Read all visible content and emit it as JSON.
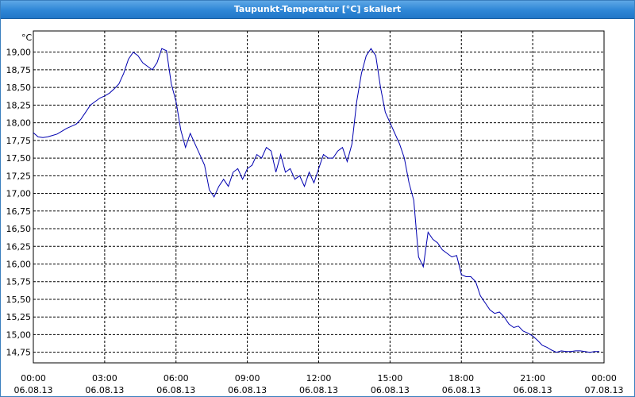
{
  "window": {
    "title": "Taupunkt-Temperatur [°C] skaliert"
  },
  "colors": {
    "line": "#0000b0",
    "grid": "#000000",
    "titlebar": "#2e86d6"
  },
  "chart_data": {
    "type": "line",
    "ylabel": "°C",
    "ylim": [
      14.6,
      19.3
    ],
    "y_ticks": [
      19.0,
      18.75,
      18.5,
      18.25,
      18.0,
      17.75,
      17.5,
      17.25,
      17.0,
      16.75,
      16.5,
      16.25,
      16.0,
      15.75,
      15.5,
      15.25,
      15.0,
      14.75
    ],
    "y_tick_labels": [
      "19,00",
      "18,75",
      "18,50",
      "18,25",
      "18,00",
      "17,75",
      "17,50",
      "17,25",
      "17,00",
      "16,75",
      "16,50",
      "16,25",
      "16,00",
      "15,75",
      "15,50",
      "15,25",
      "15,00",
      "14,75"
    ],
    "x_tick_labels": [
      {
        "time": "00:00",
        "date": "06.08.13"
      },
      {
        "time": "03:00",
        "date": "06.08.13"
      },
      {
        "time": "06:00",
        "date": "06.08.13"
      },
      {
        "time": "09:00",
        "date": "06.08.13"
      },
      {
        "time": "12:00",
        "date": "06.08.13"
      },
      {
        "time": "15:00",
        "date": "06.08.13"
      },
      {
        "time": "18:00",
        "date": "06.08.13"
      },
      {
        "time": "21:00",
        "date": "06.08.13"
      },
      {
        "time": "00:00",
        "date": "07.08.13"
      }
    ],
    "xlim_hours": [
      0,
      24
    ],
    "grid": true,
    "series": [
      {
        "x": [
          0.0,
          0.2,
          0.4,
          0.6,
          0.8,
          1.0,
          1.2,
          1.4,
          1.6,
          1.8,
          2.0,
          2.2,
          2.4,
          2.6,
          2.8,
          3.0,
          3.2,
          3.4,
          3.6,
          3.8,
          4.0,
          4.2,
          4.4,
          4.6,
          4.8,
          5.0,
          5.2,
          5.4,
          5.6,
          5.8,
          6.0,
          6.2,
          6.4,
          6.6,
          6.8,
          7.0,
          7.2,
          7.4,
          7.6,
          7.8,
          8.0,
          8.2,
          8.4,
          8.6,
          8.8,
          9.0,
          9.2,
          9.4,
          9.6,
          9.8,
          10.0,
          10.2,
          10.4,
          10.6,
          10.8,
          11.0,
          11.2,
          11.4,
          11.6,
          11.8,
          12.0,
          12.2,
          12.4,
          12.6,
          12.8,
          13.0,
          13.2,
          13.4,
          13.6,
          13.8,
          14.0,
          14.2,
          14.4,
          14.6,
          14.8,
          15.0,
          15.2,
          15.4,
          15.6,
          15.8,
          16.0,
          16.2,
          16.4,
          16.6,
          16.8,
          17.0,
          17.2,
          17.4,
          17.6,
          17.8,
          18.0,
          18.2,
          18.4,
          18.6,
          18.8,
          19.0,
          19.2,
          19.4,
          19.6,
          19.8,
          20.0,
          20.2,
          20.4,
          20.6,
          20.8,
          21.0,
          21.2,
          21.4,
          21.6,
          21.8,
          22.0,
          22.2,
          22.4,
          22.6,
          22.8,
          23.0,
          23.2,
          23.4,
          23.6,
          23.8
        ],
        "y": [
          17.86,
          17.8,
          17.79,
          17.8,
          17.82,
          17.84,
          17.88,
          17.92,
          17.95,
          17.98,
          18.05,
          18.15,
          18.25,
          18.3,
          18.35,
          18.38,
          18.42,
          18.48,
          18.55,
          18.7,
          18.9,
          19.0,
          18.95,
          18.85,
          18.8,
          18.75,
          18.85,
          19.05,
          19.02,
          18.55,
          18.3,
          17.9,
          17.65,
          17.85,
          17.7,
          17.55,
          17.4,
          17.05,
          16.95,
          17.1,
          17.2,
          17.1,
          17.3,
          17.35,
          17.2,
          17.35,
          17.4,
          17.55,
          17.5,
          17.65,
          17.6,
          17.3,
          17.55,
          17.3,
          17.35,
          17.2,
          17.25,
          17.1,
          17.3,
          17.15,
          17.35,
          17.55,
          17.5,
          17.5,
          17.6,
          17.65,
          17.45,
          17.7,
          18.3,
          18.7,
          18.95,
          19.05,
          18.95,
          18.5,
          18.15,
          18.0,
          17.85,
          17.7,
          17.5,
          17.15,
          16.9,
          16.1,
          15.96,
          16.45,
          16.35,
          16.3,
          16.2,
          16.15,
          16.1,
          16.12,
          15.85,
          15.82,
          15.82,
          15.75,
          15.55,
          15.45,
          15.35,
          15.3,
          15.32,
          15.25,
          15.15,
          15.1,
          15.12,
          15.05,
          15.02,
          14.98,
          14.92,
          14.85,
          14.82,
          14.78,
          14.75,
          14.77,
          14.76,
          14.76,
          14.77,
          14.77,
          14.76,
          14.75,
          14.76,
          14.76
        ]
      }
    ]
  }
}
